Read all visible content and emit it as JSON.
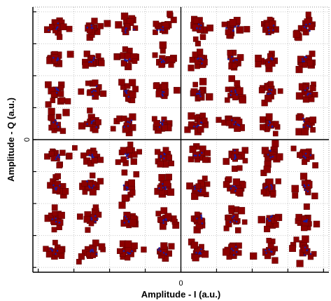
{
  "chart_data": {
    "type": "scatter",
    "title": "",
    "xlabel": "Amplitude - I (a.u.)",
    "ylabel": "Amplitude - Q (a.u.)",
    "x_tick_labels": [
      {
        "value": 0,
        "label": "0"
      }
    ],
    "y_tick_labels": [
      {
        "value": 0,
        "label": "0"
      }
    ],
    "xlim": [
      -8.3,
      8.3
    ],
    "ylim": [
      -8.3,
      8.3
    ],
    "grid": true,
    "constellation": "64-QAM",
    "levels": [
      -7,
      -5,
      -3,
      -1,
      1,
      3,
      5,
      7
    ],
    "series": [
      {
        "role": "received-samples",
        "marker": "square",
        "color": "#8b0000",
        "outline": "#5a0000"
      },
      {
        "role": "ideal-symbols",
        "marker": "dot",
        "color": "#1a1aa0"
      }
    ]
  }
}
